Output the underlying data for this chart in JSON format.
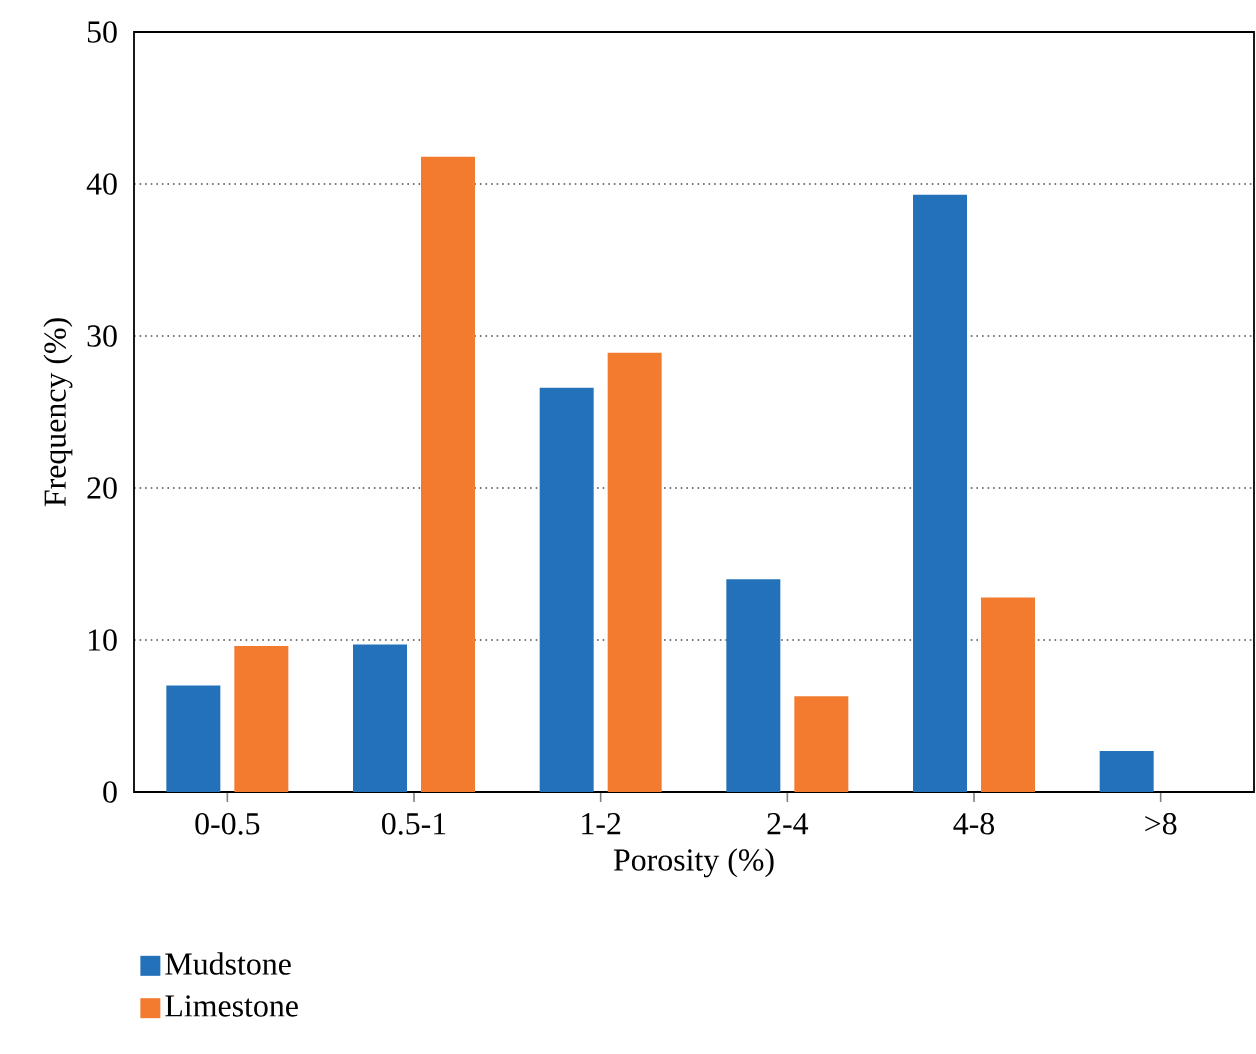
{
  "chart_data": {
    "type": "bar",
    "xlabel": "Porosity (%)",
    "ylabel": "Frequency (%)",
    "categories": [
      "0-0.5",
      "0.5-1",
      "1-2",
      "2-4",
      "4-8",
      ">8"
    ],
    "series": [
      {
        "name": "Mudstone",
        "color": "#2372b9",
        "values": [
          7.0,
          9.7,
          26.6,
          14.0,
          39.3,
          2.7
        ]
      },
      {
        "name": "Limestone",
        "color": "#f27b2f",
        "values": [
          9.6,
          41.8,
          28.9,
          6.3,
          12.8,
          null
        ]
      }
    ],
    "ylim": [
      0,
      50
    ],
    "yticks": [
      0,
      10,
      20,
      30,
      40,
      50
    ],
    "grid": "y",
    "legend": "bottom"
  }
}
